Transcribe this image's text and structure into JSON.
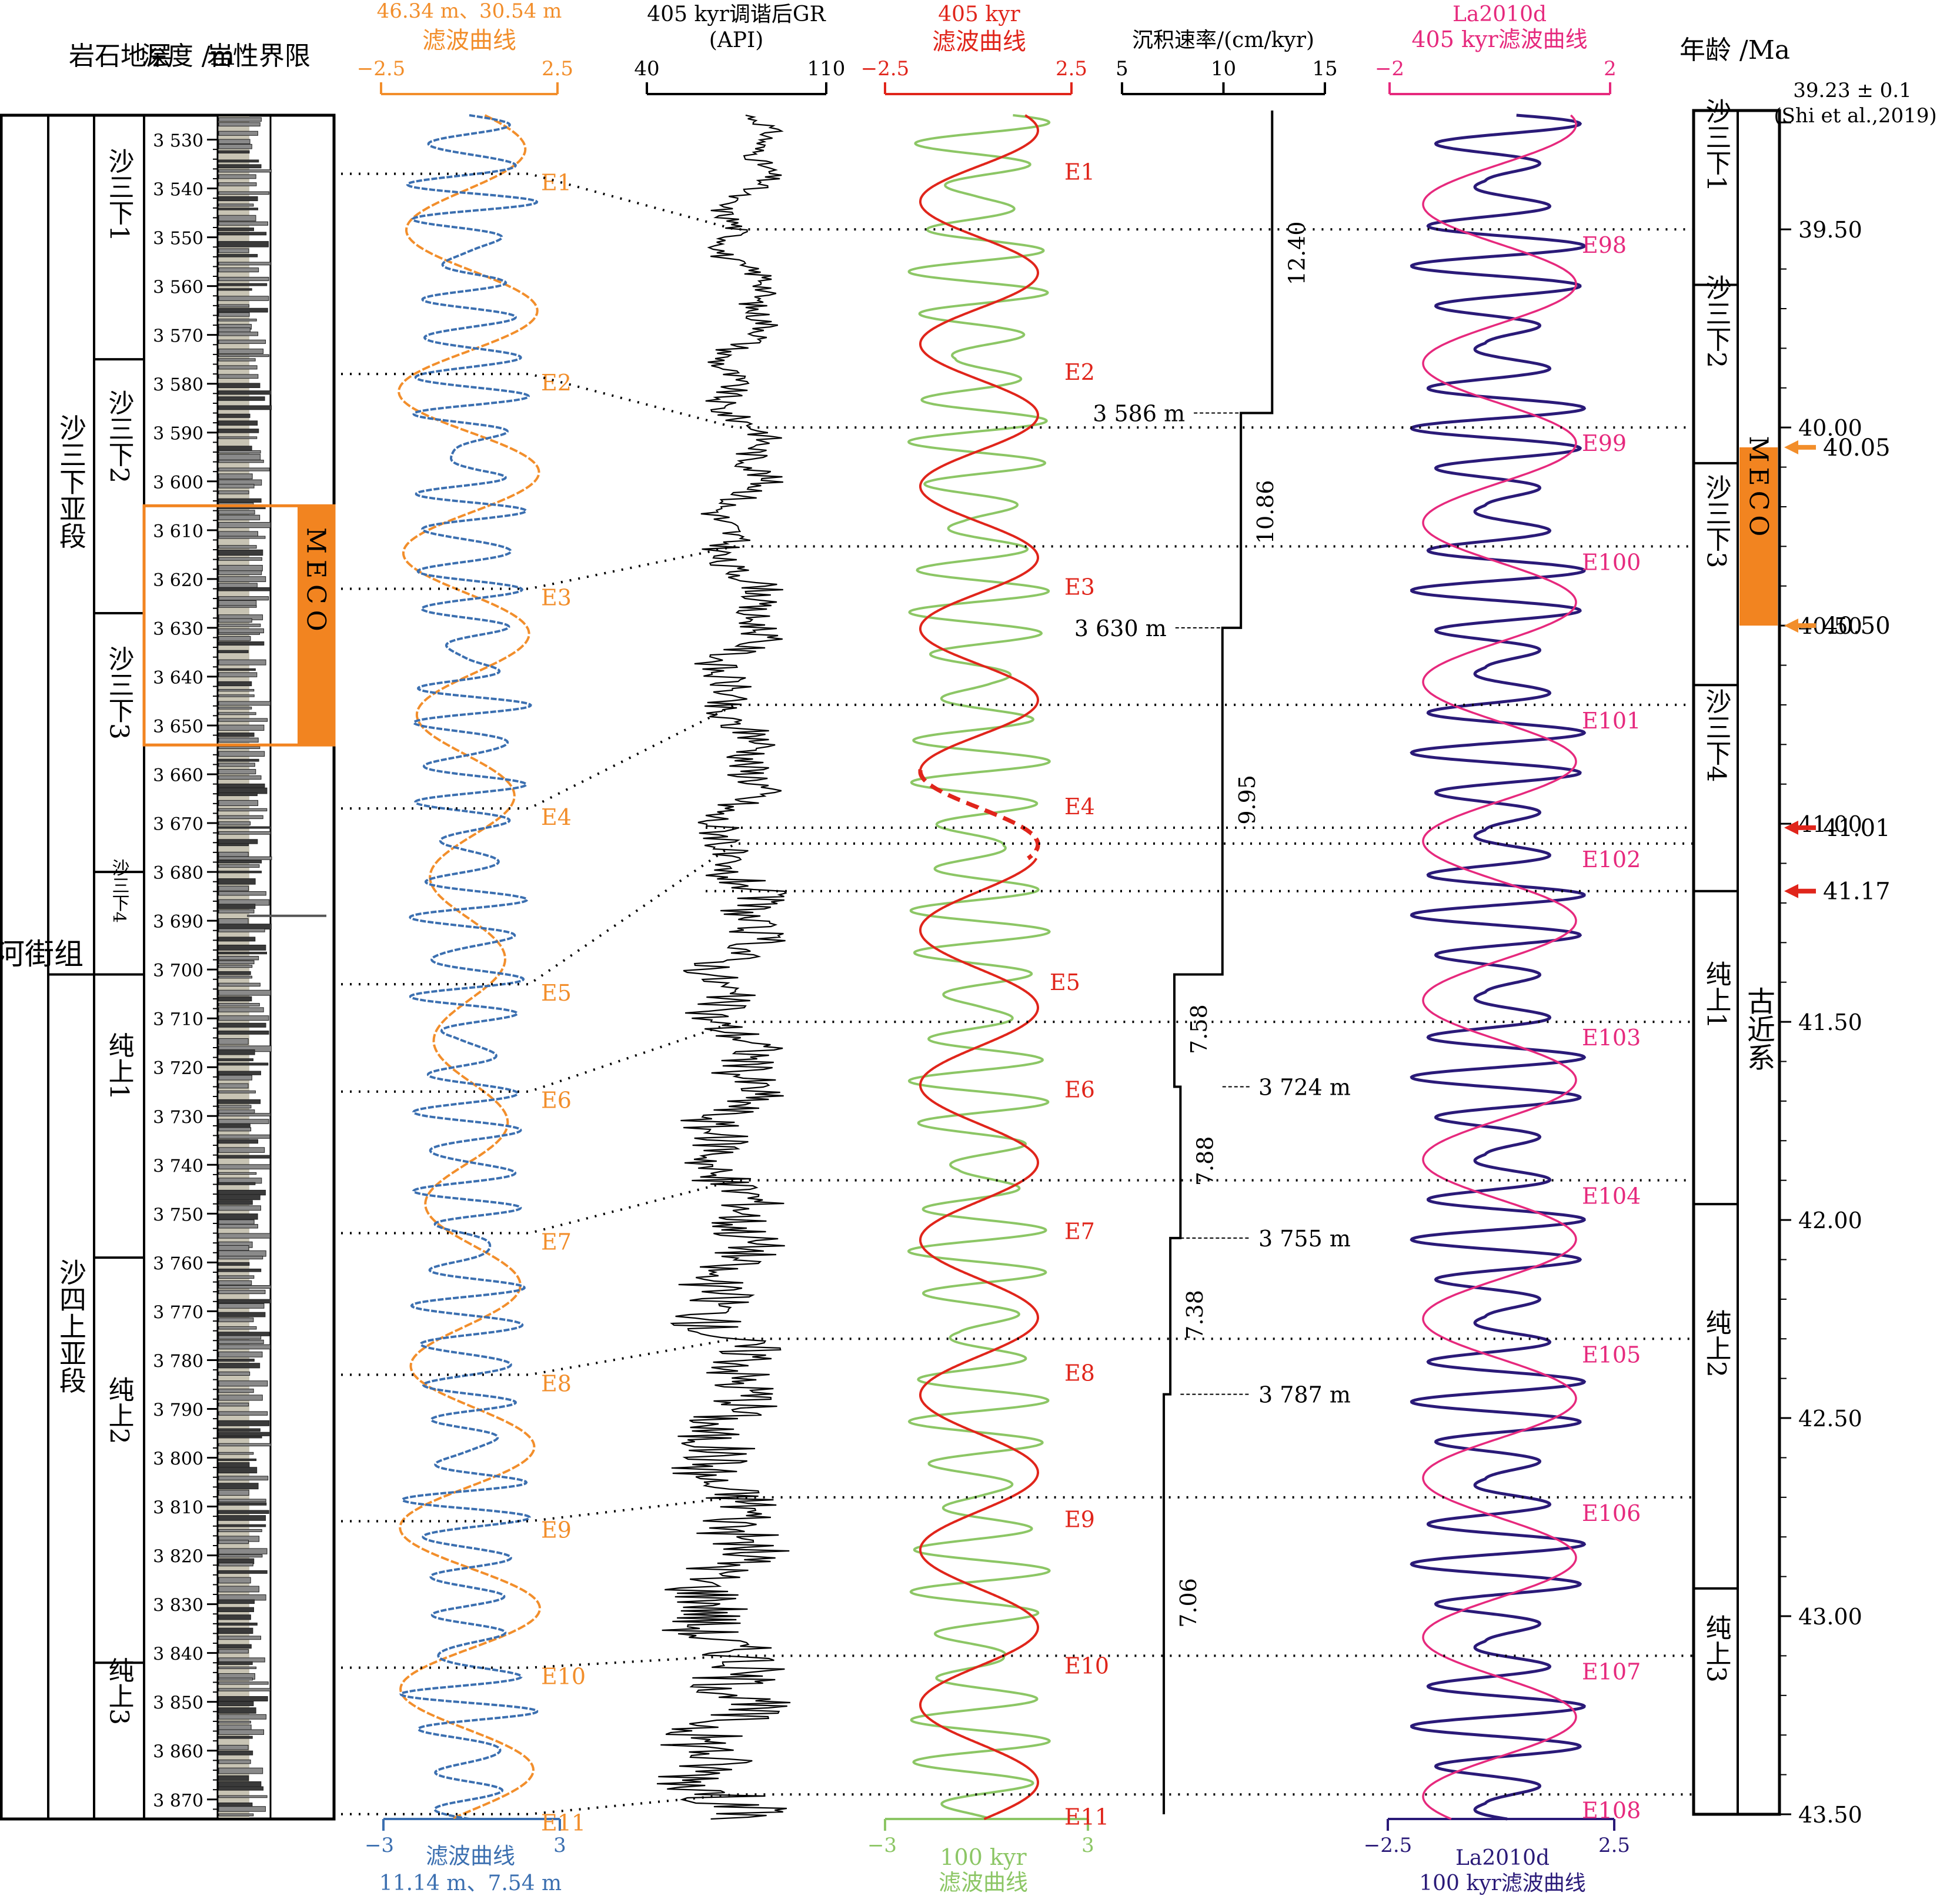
{
  "colors": {
    "orange": "#f28e2b",
    "blue": "#3b6fb0",
    "red": "#e0251b",
    "green": "#8cc665",
    "pink": "#e6297d",
    "purple": "#2a1a78",
    "meco": "#f28420",
    "lith": "#8a8a8a"
  },
  "left": {
    "col_strat": "岩石地层",
    "col_depth": "深度 /m",
    "col_lith": "岩性界限",
    "formation": "沙河街组",
    "members": [
      {
        "name": "沙三下亚段",
        "top": 3528,
        "bot": 3701
      },
      {
        "name": "沙四上亚段",
        "top": 3701,
        "bot": 3874
      }
    ],
    "units": [
      {
        "name": "沙三下1",
        "top": 3528,
        "bot": 3575
      },
      {
        "name": "沙三下2",
        "top": 3575,
        "bot": 3627
      },
      {
        "name": "沙三下3",
        "top": 3627,
        "bot": 3680
      },
      {
        "name": "沙三下4",
        "top": 3680,
        "bot": 3701
      },
      {
        "name": "纯上1",
        "top": 3701,
        "bot": 3759
      },
      {
        "name": "纯上2",
        "top": 3759,
        "bot": 3842
      },
      {
        "name": "纯上3",
        "top": 3842,
        "bot": 3874
      }
    ],
    "meco_label": "MECO",
    "meco_top": 3605,
    "meco_bot": 3654,
    "depth_ticks": [
      "3 530",
      "3 540",
      "3 550",
      "3 560",
      "3 570",
      "3 580",
      "3 590",
      "3 600",
      "3 610",
      "3 620",
      "3 630",
      "3 640",
      "3 650",
      "3 660",
      "3 670",
      "3 680",
      "3 690",
      "3 700",
      "3 710",
      "3 720",
      "3 730",
      "3 740",
      "3 750",
      "3 760",
      "3 770",
      "3 780",
      "3 790",
      "3 800",
      "3 810",
      "3 820",
      "3 830",
      "3 840",
      "3 850",
      "3 860",
      "3 870"
    ]
  },
  "chart_data": [
    {
      "type": "line",
      "name": "filter_long",
      "title": "46.34 m、30.54 m 滤波曲线",
      "xlim": [
        -2.5,
        2.5
      ],
      "x_ticks": [
        "−2.5",
        "2.5"
      ],
      "events": [
        {
          "label": "E1",
          "depth": 3537
        },
        {
          "label": "E2",
          "depth": 3578
        },
        {
          "label": "E3",
          "depth": 3622
        },
        {
          "label": "E4",
          "depth": 3667
        },
        {
          "label": "E5",
          "depth": 3703
        },
        {
          "label": "E6",
          "depth": 3725
        },
        {
          "label": "E7",
          "depth": 3754
        },
        {
          "label": "E8",
          "depth": 3783
        },
        {
          "label": "E9",
          "depth": 3813
        },
        {
          "label": "E10",
          "depth": 3843
        },
        {
          "label": "E11",
          "depth": 3873
        }
      ]
    },
    {
      "type": "line",
      "name": "filter_short",
      "title": "滤波曲线 11.14 m、7.54 m",
      "xlim": [
        -3,
        3
      ],
      "x_ticks": [
        "−3",
        "3"
      ]
    },
    {
      "type": "line",
      "name": "gr",
      "title": "405 kyr调谐后GR (API)",
      "xlim": [
        40,
        110
      ],
      "x_ticks": [
        "40",
        "110"
      ]
    },
    {
      "type": "line",
      "name": "f405",
      "title": "405 kyr 滤波曲线",
      "xlim": [
        -2.5,
        2.5
      ],
      "x_ticks": [
        "−2.5",
        "2.5"
      ],
      "events": [
        "E1",
        "E2",
        "E3",
        "E4",
        "E5",
        "E6",
        "E7",
        "E8",
        "E9",
        "E10",
        "E11"
      ]
    },
    {
      "type": "line",
      "name": "f100",
      "title": "100 kyr 滤波曲线",
      "xlim": [
        -3,
        3
      ],
      "x_ticks": [
        "−3",
        "3"
      ]
    },
    {
      "type": "line",
      "name": "sedrate",
      "title": "沉积速率/(cm/kyr)",
      "xlim": [
        5,
        15
      ],
      "x_ticks": [
        "5",
        "10",
        "15"
      ],
      "steps": [
        {
          "rate": 12.4,
          "label": "12.40",
          "from": 3528,
          "to": 3586
        },
        {
          "rate": 10.86,
          "label": "10.86",
          "from": 3586,
          "to": 3630
        },
        {
          "rate": 9.95,
          "label": "9.95",
          "from": 3630,
          "to": 3701
        },
        {
          "rate": 7.58,
          "label": "7.58",
          "from": 3701,
          "to": 3724
        },
        {
          "rate": 7.88,
          "label": "7.88",
          "from": 3724,
          "to": 3755
        },
        {
          "rate": 7.38,
          "label": "7.38",
          "from": 3755,
          "to": 3787
        },
        {
          "rate": 7.06,
          "label": "7.06",
          "from": 3787,
          "to": 3874
        }
      ],
      "break_labels": [
        {
          "text": "3 586 m",
          "depth": 3586
        },
        {
          "text": "3 630 m",
          "depth": 3630
        },
        {
          "text": "3 724 m",
          "depth": 3724
        },
        {
          "text": "3 755 m",
          "depth": 3755
        },
        {
          "text": "3 787 m",
          "depth": 3787
        }
      ]
    },
    {
      "type": "line",
      "name": "la405",
      "title": "La2010d 405 kyr滤波曲线",
      "xlim": [
        -2,
        2
      ],
      "x_ticks": [
        "−2",
        "2"
      ],
      "events": [
        {
          "label": "E98",
          "age": 39.5
        },
        {
          "label": "E99",
          "age": 40.0
        },
        {
          "label": "E100",
          "age": 40.3
        },
        {
          "label": "E101",
          "age": 40.7
        },
        {
          "label": "E102",
          "age": 41.05
        },
        {
          "label": "E103",
          "age": 41.5
        },
        {
          "label": "E104",
          "age": 41.9
        },
        {
          "label": "E105",
          "age": 42.3
        },
        {
          "label": "E106",
          "age": 42.7
        },
        {
          "label": "E107",
          "age": 43.1
        },
        {
          "label": "E108",
          "age": 43.45
        }
      ]
    },
    {
      "type": "line",
      "name": "la100",
      "title": "La2010d 100 kyr滤波曲线",
      "xlim": [
        -2.5,
        2.5
      ],
      "x_ticks": [
        "−2.5",
        "2.5"
      ]
    }
  ],
  "right": {
    "age_title": "年龄 /Ma",
    "top_note": "39.23 ± 0.1",
    "top_note2": "(Shi et al.,2019)",
    "age_ticks": [
      "39.50",
      "40.00",
      "40.50",
      "41.00",
      "41.50",
      "42.00",
      "42.50",
      "43.00",
      "43.50"
    ],
    "age_range": [
      39.2,
      43.5
    ],
    "units": [
      {
        "name": "沙三下1",
        "top": 39.2,
        "bot": 39.64
      },
      {
        "name": "沙三下2",
        "top": 39.64,
        "bot": 40.09
      },
      {
        "name": "沙三下3",
        "top": 40.09,
        "bot": 40.65
      },
      {
        "name": "沙三下4",
        "top": 40.65,
        "bot": 41.17
      },
      {
        "name": "纯上1",
        "top": 41.17,
        "bot": 41.96
      },
      {
        "name": "纯上2",
        "top": 41.96,
        "bot": 42.93
      },
      {
        "name": "纯上3",
        "top": 42.93,
        "bot": 43.5
      }
    ],
    "system": "古近系",
    "meco_label": "MECO",
    "meco_top": 40.05,
    "meco_bot": 40.5,
    "arrows": [
      {
        "text": "40.05",
        "age": 40.05,
        "color": "#f28e2b"
      },
      {
        "text": "40.50",
        "age": 40.5,
        "color": "#f28e2b"
      },
      {
        "text": "41.01",
        "age": 41.01,
        "color": "#e0251b"
      },
      {
        "text": "41.17",
        "age": 41.17,
        "color": "#e0251b"
      }
    ]
  }
}
